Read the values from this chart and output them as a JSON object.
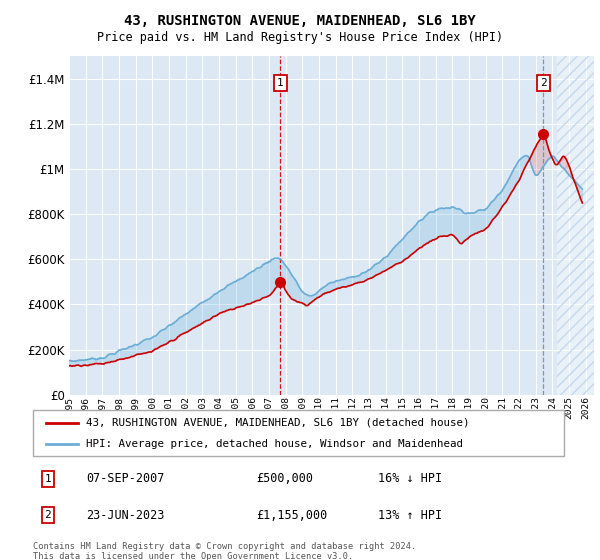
{
  "title": "43, RUSHINGTON AVENUE, MAIDENHEAD, SL6 1BY",
  "subtitle": "Price paid vs. HM Land Registry's House Price Index (HPI)",
  "hpi_label": "HPI: Average price, detached house, Windsor and Maidenhead",
  "property_label": "43, RUSHINGTON AVENUE, MAIDENHEAD, SL6 1BY (detached house)",
  "annotation1": {
    "num": "1",
    "date": "07-SEP-2007",
    "price": "£500,000",
    "hpi": "16% ↓ HPI",
    "x_year": 2007.69
  },
  "annotation2": {
    "num": "2",
    "date": "23-JUN-2023",
    "price": "£1,155,000",
    "hpi": "13% ↑ HPI",
    "x_year": 2023.47
  },
  "hpi_color": "#6baed6",
  "price_color": "#cc0000",
  "background_color": "#dce9f5",
  "hatch_color": "#c5d8ec",
  "ylim": [
    0,
    1500000
  ],
  "yticks": [
    0,
    200000,
    400000,
    600000,
    800000,
    1000000,
    1200000,
    1400000
  ],
  "xlim_start": 1995,
  "xlim_end": 2026.5,
  "footer": "Contains HM Land Registry data © Crown copyright and database right 2024.\nThis data is licensed under the Open Government Licence v3.0."
}
